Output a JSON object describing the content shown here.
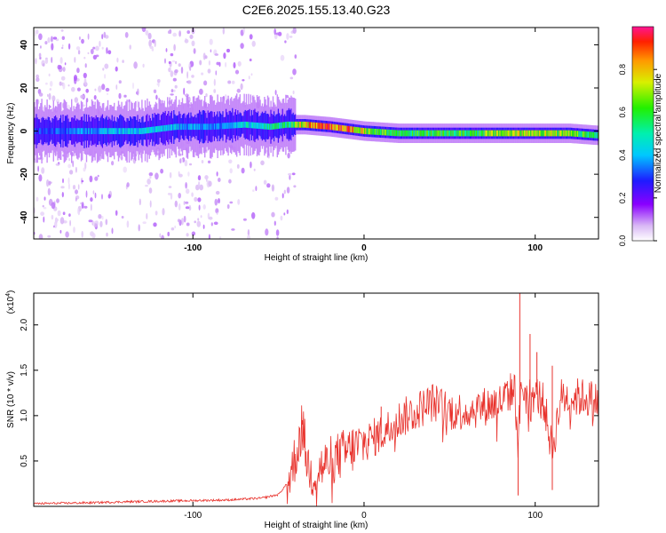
{
  "figure_title": "C2E6.2025.155.13.40.G23",
  "colors": {
    "snr_line": "#e8322c",
    "ridge_core": "#e8322c",
    "ridge_mid": "#2ee0b0",
    "ridge_outer": "#2a1bff",
    "scatter": "#c9a8f2"
  },
  "chart_data": [
    {
      "type": "heatmap",
      "title": "C2E6.2025.155.13.40.G23",
      "xlabel": "Height of straight line (km)",
      "ylabel": "Frequency (Hz)",
      "xlim": [
        -193,
        137
      ],
      "ylim": [
        -50,
        48
      ],
      "x_ticks": [
        -100,
        0,
        100
      ],
      "y_ticks": [
        -40,
        -20,
        0,
        20,
        40
      ],
      "colorbar": {
        "label": "Normalized spectral amplitude",
        "range": [
          0,
          1
        ],
        "ticks": [
          "0.0",
          "0.2",
          "0.4",
          "0.6",
          "0.8"
        ],
        "tick_values": [
          0,
          0.2,
          0.4,
          0.6,
          0.8
        ],
        "colormap": "rainbow"
      },
      "ridge": {
        "x": [
          -193,
          -170,
          -150,
          -130,
          -110,
          -90,
          -70,
          -55,
          -45,
          -35,
          -20,
          -10,
          0,
          20,
          40,
          60,
          80,
          100,
          120,
          137
        ],
        "frequency": [
          0,
          0,
          0,
          0,
          2,
          2,
          3,
          2,
          3,
          3,
          2,
          1,
          0,
          -1,
          -1,
          -1,
          -1,
          -1,
          -1,
          -2
        ],
        "amplitude": [
          0.3,
          0.35,
          0.4,
          0.45,
          0.4,
          0.35,
          0.45,
          0.5,
          0.55,
          0.8,
          0.9,
          0.9,
          0.7,
          0.6,
          0.6,
          0.6,
          0.7,
          0.75,
          0.65,
          0.55
        ]
      },
      "scatter_extent": {
        "x": [
          -193,
          -40
        ],
        "frequency": [
          -50,
          48
        ]
      }
    },
    {
      "type": "line",
      "xlabel": "Height of straight line (km)",
      "ylabel": "SNR (10 * v/v)",
      "y_scale_label": "(x10^4)",
      "y_unit_multiplier": 10000,
      "xlim": [
        -193,
        137
      ],
      "ylim": [
        0,
        2.35
      ],
      "x_ticks": [
        -100,
        0,
        100
      ],
      "y_ticks": [
        0.5,
        1.0,
        1.5,
        2.0
      ],
      "y_tick_labels": [
        "0.5",
        "1.0",
        "1.5",
        "2.0"
      ],
      "series": [
        {
          "x": [
            -193,
            -160,
            -140,
            -110,
            -80,
            -60,
            -50,
            -45,
            -40,
            -36,
            -33,
            -30,
            -20,
            -10,
            0,
            10,
            20,
            30,
            40,
            50,
            60,
            70,
            80,
            85,
            88,
            90,
            92,
            95,
            100,
            105,
            110,
            115,
            120,
            130,
            137
          ],
          "values": [
            0.03,
            0.04,
            0.05,
            0.06,
            0.07,
            0.09,
            0.13,
            0.25,
            0.55,
            0.9,
            0.45,
            0.35,
            0.5,
            0.6,
            0.7,
            0.8,
            0.95,
            1.05,
            1.15,
            1.05,
            1.05,
            1.1,
            1.15,
            1.25,
            1.3,
            0.7,
            1.35,
            1.2,
            1.25,
            1.15,
            0.6,
            1.2,
            1.2,
            1.2,
            1.15
          ],
          "spikes": [
            {
              "x": -36,
              "value": 0.95
            },
            {
              "x": 10,
              "value": 1.1
            },
            {
              "x": 91,
              "value": 2.35
            },
            {
              "x": 97,
              "value": 1.9
            },
            {
              "x": 101,
              "value": 1.7
            },
            {
              "x": 110,
              "value": 1.55
            },
            {
              "x": 90,
              "value": 0.12
            },
            {
              "x": 110,
              "value": 0.18
            }
          ]
        }
      ]
    }
  ]
}
